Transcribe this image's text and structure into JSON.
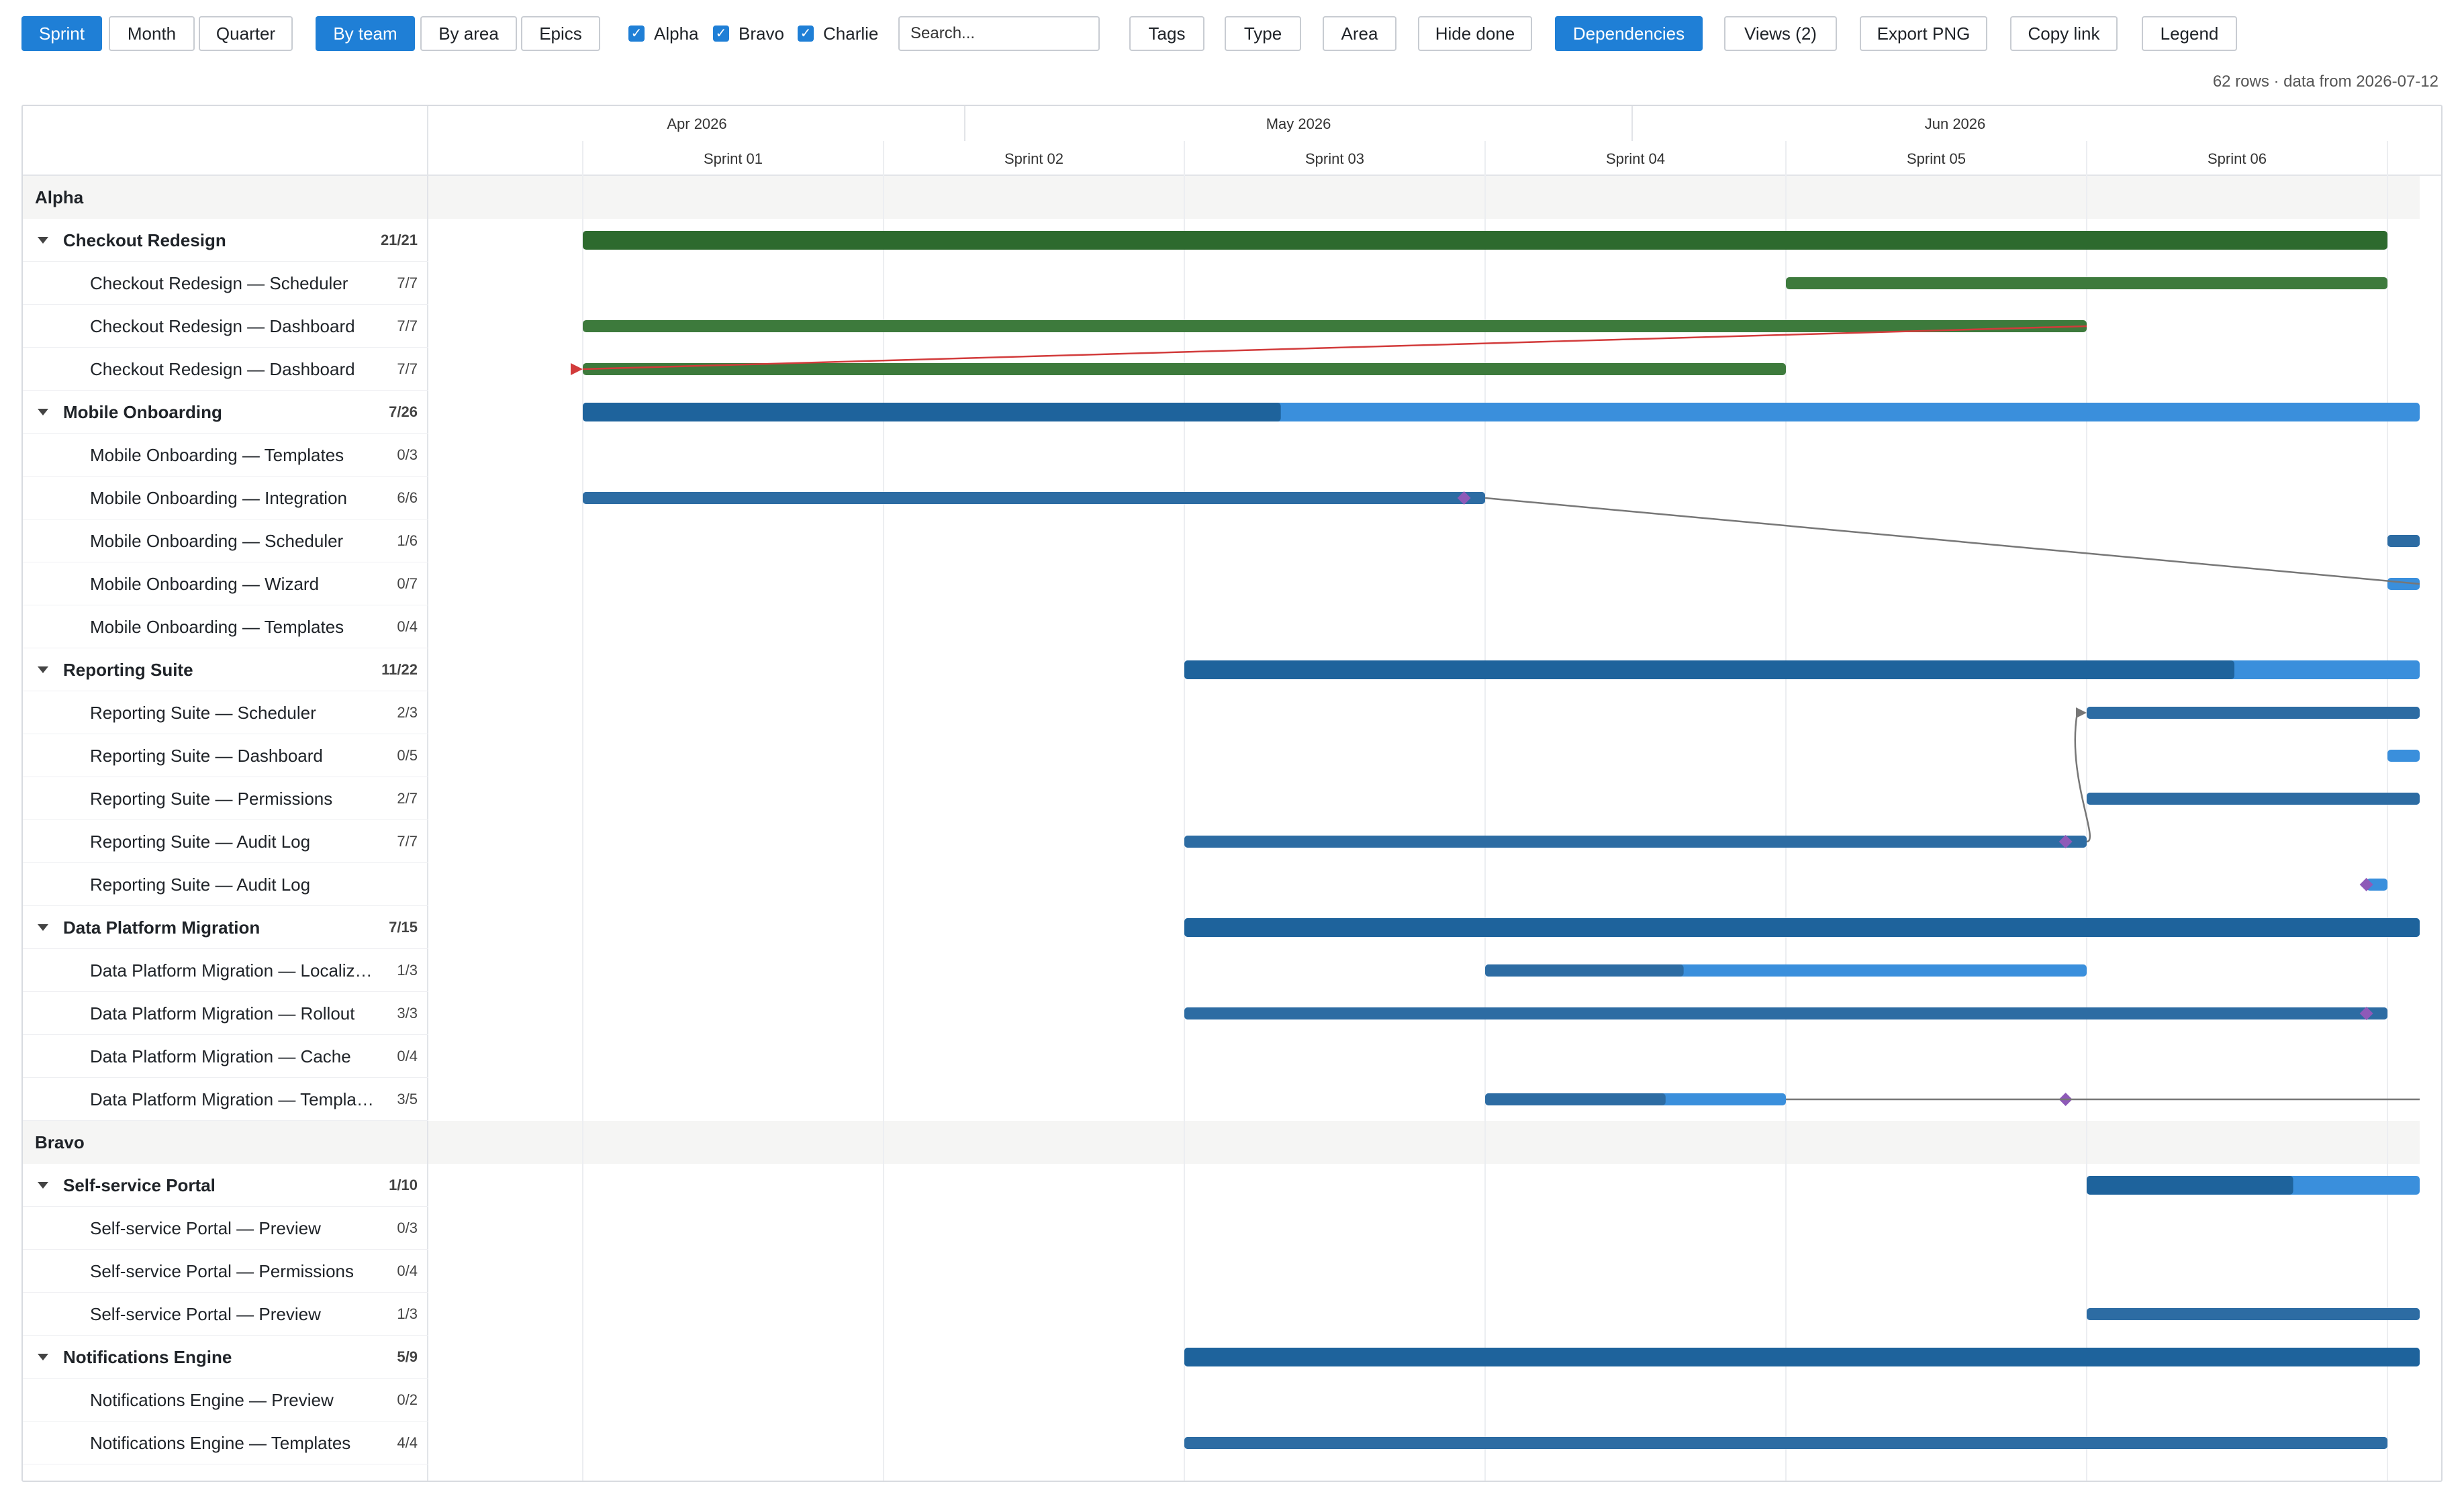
{
  "toolbar": {
    "scale_buttons": [
      "Sprint",
      "Month",
      "Quarter"
    ],
    "group_buttons": [
      "By team",
      "By area",
      "Epics"
    ],
    "team_filters": [
      "Alpha",
      "Bravo",
      "Charlie"
    ],
    "search_placeholder": "Search...",
    "filter_buttons": [
      "Tags",
      "Type",
      "Area",
      "Hide done"
    ],
    "dependencies_label": "Dependencies",
    "views_label": "Views (2)",
    "export_label": "Export PNG",
    "copy_link_label": "Copy link",
    "legend_label": "Legend",
    "checkmark": "✓"
  },
  "meta_text": "62 rows · data from 2026-07-12",
  "timeline": {
    "months": [
      "Apr 2026",
      "May 2026",
      "Jun 2026"
    ],
    "sprints": [
      "Sprint 01",
      "Sprint 02",
      "Sprint 03",
      "Sprint 04",
      "Sprint 05",
      "Sprint 06"
    ]
  },
  "colors": {
    "done_green": "#2d6a2e",
    "done_green_light": "#3d7a3c",
    "progress_dark": "#1e639c",
    "remaining_light": "#3a8fdc",
    "child_dark": "#2d6ca3",
    "milestone": "#8e5ab8",
    "dep_critical": "#d23b3b",
    "dep_normal": "#777777"
  },
  "rows": [
    {
      "kind": "group",
      "label": "Alpha"
    },
    {
      "kind": "epic",
      "label": "Checkout Redesign",
      "count": "21/21",
      "bar": {
        "start": 0,
        "end": 6,
        "done": 1.0,
        "style": "green"
      }
    },
    {
      "kind": "item",
      "label": "Checkout Redesign — Scheduler",
      "count": "7/7",
      "bar": {
        "start": 4,
        "end": 6,
        "done": 1.0,
        "style": "green"
      }
    },
    {
      "kind": "item",
      "label": "Checkout Redesign — Dashboard",
      "count": "7/7",
      "bar": {
        "start": 0,
        "end": 5,
        "done": 1.0,
        "style": "green"
      }
    },
    {
      "kind": "item",
      "label": "Checkout Redesign — Dashboard",
      "count": "7/7",
      "bar": {
        "start": 0,
        "end": 4,
        "done": 1.0,
        "style": "green"
      }
    },
    {
      "kind": "epic",
      "label": "Mobile Onboarding",
      "count": "7/26",
      "bar": {
        "start": 0,
        "end": 6.13,
        "done": 0.38,
        "style": "blue"
      }
    },
    {
      "kind": "item",
      "label": "Mobile Onboarding — Templates",
      "count": "0/3"
    },
    {
      "kind": "item",
      "label": "Mobile Onboarding — Integration",
      "count": "6/6",
      "bar": {
        "start": 0,
        "end": 3,
        "done": 1.0,
        "style": "blue"
      },
      "milestone": 2.93
    },
    {
      "kind": "item",
      "label": "Mobile Onboarding — Scheduler",
      "count": "1/6",
      "bar": {
        "start": 6,
        "end": 6.13,
        "done": 1.0,
        "style": "blue"
      }
    },
    {
      "kind": "item",
      "label": "Mobile Onboarding — Wizard",
      "count": "0/7",
      "bar": {
        "start": 6,
        "end": 6.13,
        "done": 0.0,
        "style": "blue"
      }
    },
    {
      "kind": "item",
      "label": "Mobile Onboarding — Templates",
      "count": "0/4"
    },
    {
      "kind": "epic",
      "label": "Reporting Suite",
      "count": "11/22",
      "bar": {
        "start": 2,
        "end": 6.13,
        "done": 0.85,
        "style": "blue"
      }
    },
    {
      "kind": "item",
      "label": "Reporting Suite — Scheduler",
      "count": "2/3",
      "bar": {
        "start": 5,
        "end": 6.13,
        "done": 1.0,
        "style": "blue"
      }
    },
    {
      "kind": "item",
      "label": "Reporting Suite — Dashboard",
      "count": "0/5",
      "bar": {
        "start": 6,
        "end": 6.13,
        "done": 0.0,
        "style": "blue"
      }
    },
    {
      "kind": "item",
      "label": "Reporting Suite — Permissions",
      "count": "2/7",
      "bar": {
        "start": 5,
        "end": 6.13,
        "done": 1.0,
        "style": "blue"
      }
    },
    {
      "kind": "item",
      "label": "Reporting Suite — Audit Log",
      "count": "7/7",
      "bar": {
        "start": 2,
        "end": 5,
        "done": 1.0,
        "style": "blue"
      },
      "milestone": 4.93
    },
    {
      "kind": "item",
      "label": "Reporting Suite — Audit Log",
      "count": "",
      "bar": {
        "start": 5.93,
        "end": 6,
        "done": 0.0,
        "style": "blue"
      },
      "milestone": 5.93
    },
    {
      "kind": "epic",
      "label": "Data Platform Migration",
      "count": "7/15",
      "bar": {
        "start": 2,
        "end": 6.13,
        "done": 1.0,
        "style": "blue"
      }
    },
    {
      "kind": "item",
      "label": "Data Platform Migration — Localiz…",
      "count": "1/3",
      "bar": {
        "start": 3,
        "end": 5,
        "done": 0.33,
        "style": "blue"
      }
    },
    {
      "kind": "item",
      "label": "Data Platform Migration — Rollout",
      "count": "3/3",
      "bar": {
        "start": 2,
        "end": 6,
        "done": 1.0,
        "style": "blue"
      },
      "milestone": 5.93
    },
    {
      "kind": "item",
      "label": "Data Platform Migration — Cache",
      "count": "0/4"
    },
    {
      "kind": "item",
      "label": "Data Platform Migration — Templa…",
      "count": "3/5",
      "bar": {
        "start": 3,
        "end": 4,
        "done": 0.6,
        "style": "blue"
      },
      "milestone": 4.93
    },
    {
      "kind": "group",
      "label": "Bravo"
    },
    {
      "kind": "epic",
      "label": "Self-service Portal",
      "count": "1/10",
      "bar": {
        "start": 5,
        "end": 6.13,
        "done": 0.62,
        "style": "blue"
      }
    },
    {
      "kind": "item",
      "label": "Self-service Portal — Preview",
      "count": "0/3"
    },
    {
      "kind": "item",
      "label": "Self-service Portal — Permissions",
      "count": "0/4"
    },
    {
      "kind": "item",
      "label": "Self-service Portal — Preview",
      "count": "1/3",
      "bar": {
        "start": 5,
        "end": 6.13,
        "done": 1.0,
        "style": "blue"
      }
    },
    {
      "kind": "epic",
      "label": "Notifications Engine",
      "count": "5/9",
      "bar": {
        "start": 2,
        "end": 6.13,
        "done": 1.0,
        "style": "blue"
      }
    },
    {
      "kind": "item",
      "label": "Notifications Engine — Preview",
      "count": "0/2"
    },
    {
      "kind": "item",
      "label": "Notifications Engine — Templates",
      "count": "4/4",
      "bar": {
        "start": 2,
        "end": 6,
        "done": 1.0,
        "style": "blue"
      }
    }
  ],
  "dependencies": [
    {
      "from_row": 3,
      "from_sprint": 5,
      "to_row": 4,
      "to_sprint": 0,
      "critical": true
    },
    {
      "from_row": 7,
      "from_sprint": 3,
      "to_row": 9,
      "to_sprint": 6.13,
      "critical": false
    },
    {
      "from_row": 15,
      "from_sprint": 5,
      "to_row": 12,
      "to_sprint": 5,
      "critical": false
    },
    {
      "from_row": 21,
      "from_sprint": 4,
      "to_row": 21,
      "to_sprint": 6.13,
      "critical": false
    }
  ]
}
